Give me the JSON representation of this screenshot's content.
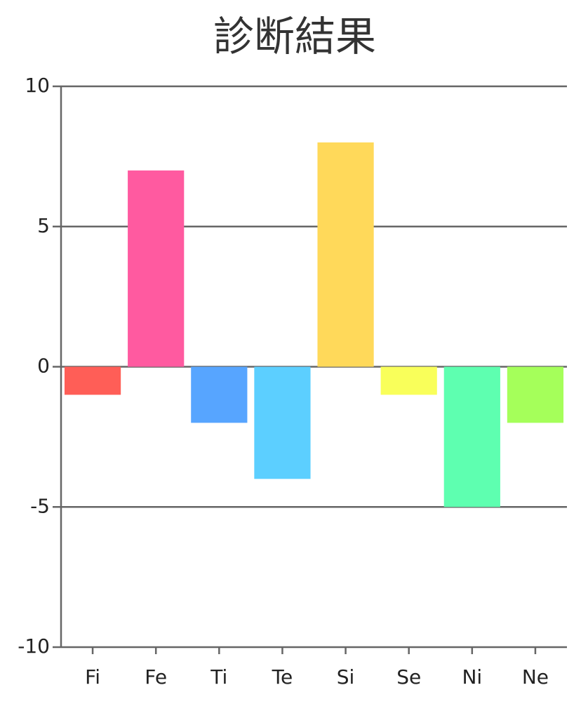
{
  "chart_data": {
    "type": "bar",
    "title": "診断結果",
    "categories": [
      "Fi",
      "Fe",
      "Ti",
      "Te",
      "Si",
      "Se",
      "Ni",
      "Ne"
    ],
    "values": [
      -1,
      7,
      -2,
      -4,
      8,
      -1,
      -5,
      -2
    ],
    "colors": [
      "#ff5e57",
      "#ff5aa0",
      "#57a5ff",
      "#5ccfff",
      "#ffd95a",
      "#f9ff5a",
      "#5effb0",
      "#a5ff5a"
    ],
    "ylim": [
      -10,
      10
    ],
    "yticks": [
      -10,
      -5,
      0,
      5,
      10
    ],
    "grid": true
  }
}
